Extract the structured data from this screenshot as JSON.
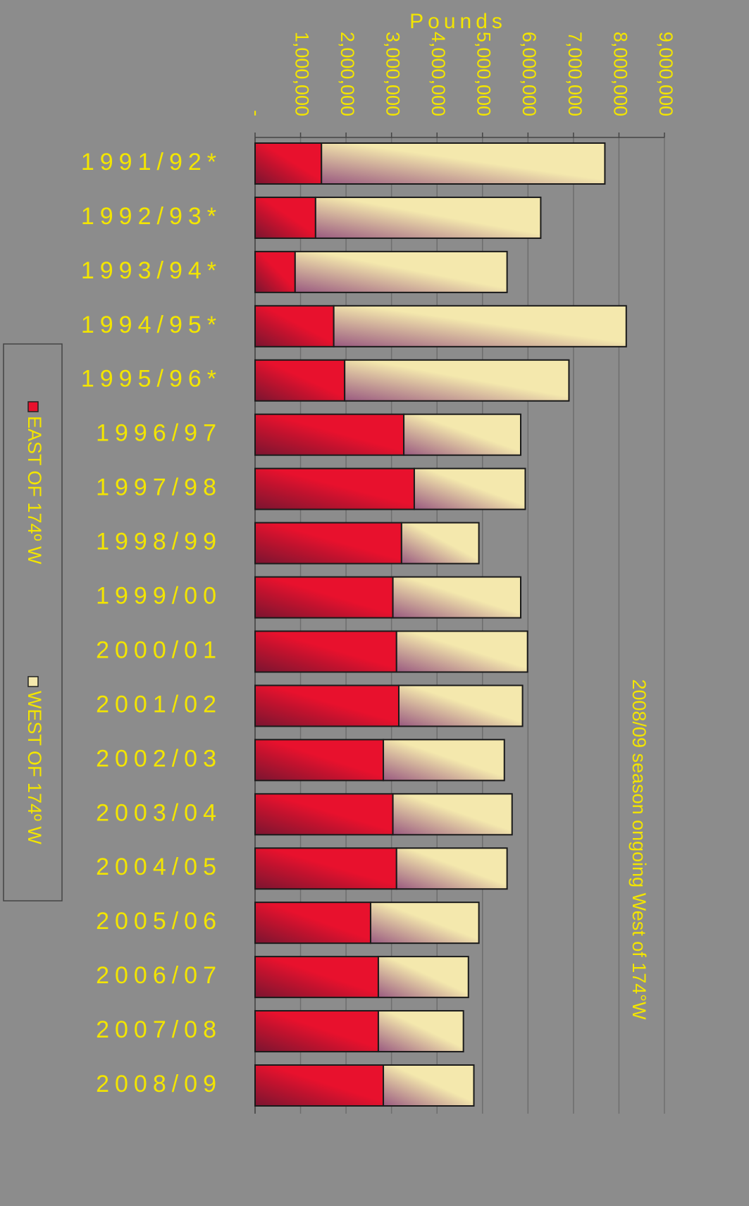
{
  "chart_data": {
    "type": "stacked-barh",
    "x_label": "Pounds",
    "annotation": "2008/09 season ongoing West of 174°W",
    "categories": [
      "1991/92*",
      "1992/93*",
      "1993/94*",
      "1994/95*",
      "1995/96*",
      "1996/97",
      "1997/98",
      "1998/99",
      "1999/00",
      "2000/01",
      "2001/02",
      "2002/03",
      "2003/04",
      "2004/05",
      "2005/06",
      "2006/07",
      "2007/08",
      "2008/09"
    ],
    "series": [
      {
        "name": "EAST OF 174º W",
        "color": "#e8112d",
        "values": [
          1460000,
          1330000,
          880000,
          1730000,
          1970000,
          3270000,
          3500000,
          3220000,
          3030000,
          3110000,
          3160000,
          2820000,
          3030000,
          3110000,
          2540000,
          2710000,
          2710000,
          2820000
        ]
      },
      {
        "name": "WEST OF 174º W",
        "color": "#f4e8ad",
        "values": [
          6230000,
          4950000,
          4660000,
          6430000,
          4930000,
          2570000,
          2440000,
          1700000,
          2810000,
          2880000,
          2720000,
          2660000,
          2620000,
          2430000,
          2380000,
          1980000,
          1870000,
          1990000
        ]
      }
    ],
    "xlim": [
      0,
      9000000
    ],
    "xticks": [
      {
        "value": 0,
        "label": "-"
      },
      {
        "value": 1000000,
        "label": "1,000,000"
      },
      {
        "value": 2000000,
        "label": "2,000,000"
      },
      {
        "value": 3000000,
        "label": "3,000,000"
      },
      {
        "value": 4000000,
        "label": "4,000,000"
      },
      {
        "value": 5000000,
        "label": "5,000,000"
      },
      {
        "value": 6000000,
        "label": "6,000,000"
      },
      {
        "value": 7000000,
        "label": "7,000,000"
      },
      {
        "value": 8000000,
        "label": "8,000,000"
      },
      {
        "value": 9000000,
        "label": "9,000,000"
      }
    ],
    "grid": true,
    "legend": "left"
  }
}
